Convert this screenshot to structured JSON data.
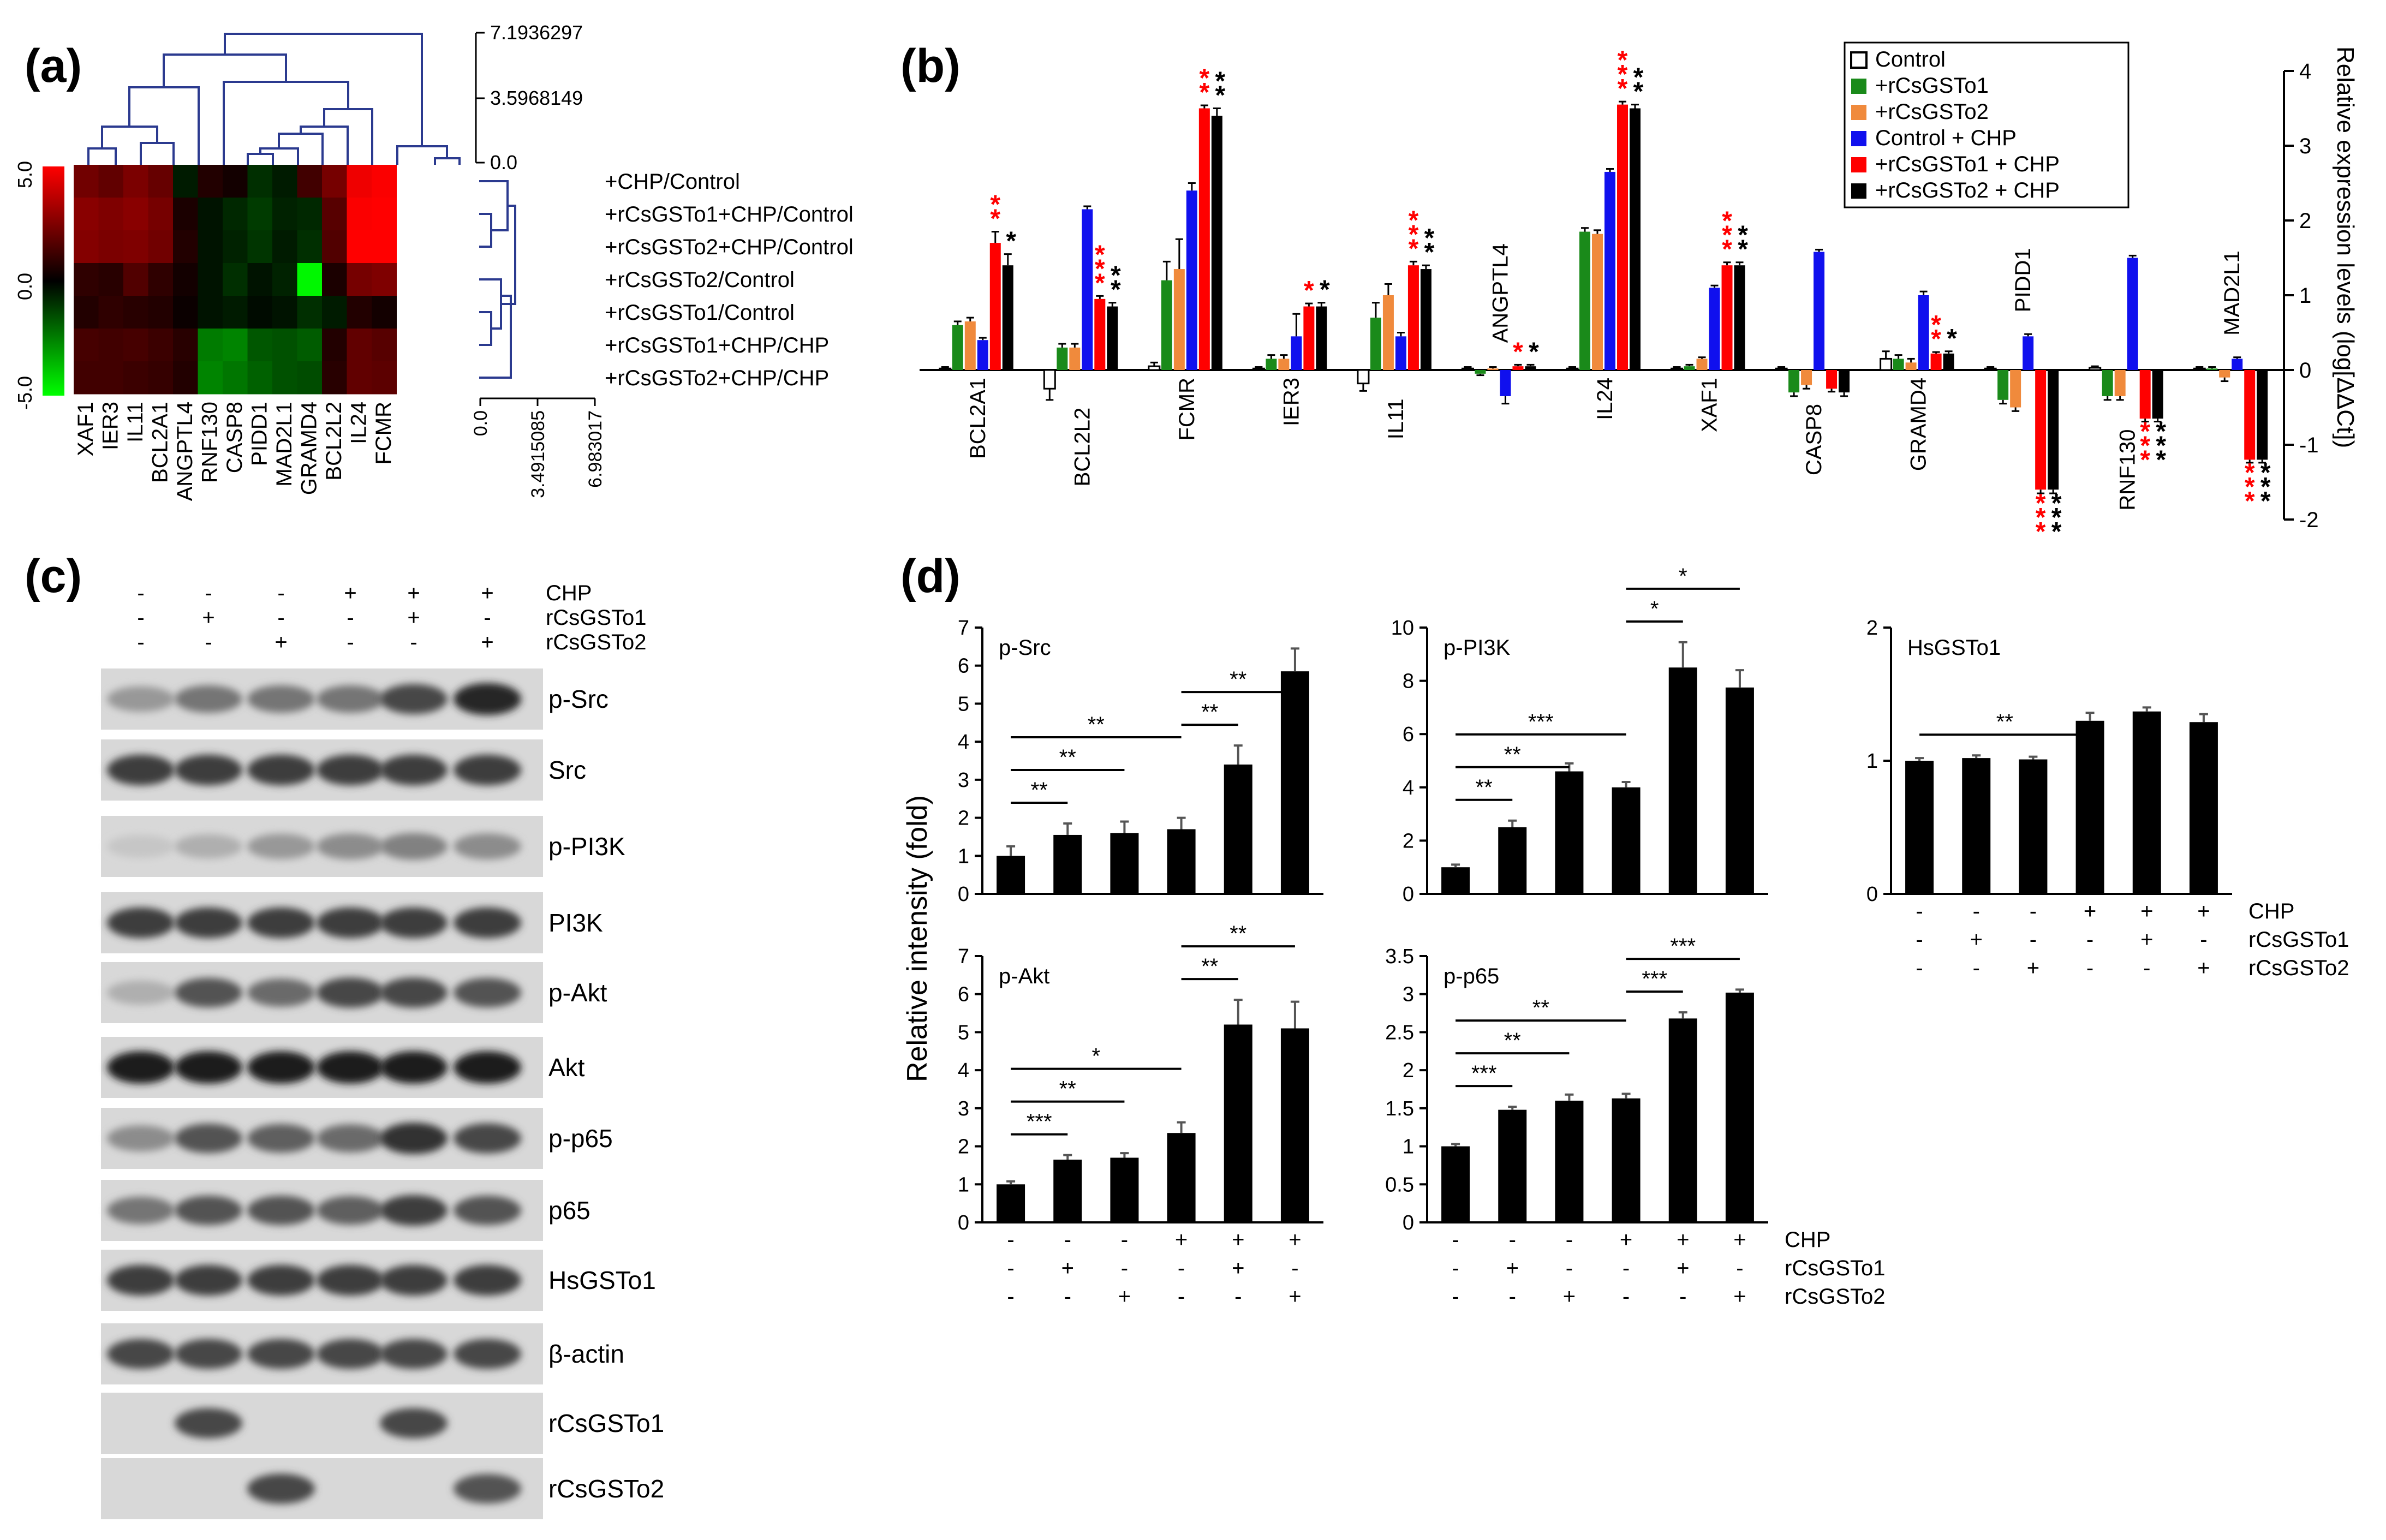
{
  "panel_labels": {
    "a": "(a)",
    "b": "(b)",
    "c": "(c)",
    "d": "(d)"
  },
  "heatmap": {
    "genes": [
      "XAF1",
      "IER3",
      "IL11",
      "BCL2A1",
      "ANGPTL4",
      "RNF130",
      "CASP8",
      "PIDD1",
      "MAD2L1",
      "GRAMD4",
      "BCL2L2",
      "IL24",
      "FCMR"
    ],
    "conditions": [
      "+CHP/Control",
      "+rCsGSTo1+CHP/Control",
      "+rCsGSTo2+CHP/Control",
      "+rCsGSTo2/Control",
      "+rCsGSTo1/Control",
      "+rCsGSTo1+CHP/CHP",
      "+rCsGSTo2+CHP/CHP"
    ],
    "values": [
      [
        1.8,
        1.5,
        2.0,
        1.6,
        -0.3,
        0.4,
        0.2,
        -0.6,
        -0.3,
        0.9,
        1.9,
        4.6,
        4.9
      ],
      [
        2.3,
        2.1,
        2.3,
        1.9,
        0.3,
        -0.2,
        -0.5,
        -0.8,
        -0.4,
        -0.5,
        1.3,
        4.9,
        5.0
      ],
      [
        2.2,
        2.0,
        2.1,
        1.8,
        0.4,
        -0.2,
        -0.4,
        -0.7,
        -0.3,
        -0.6,
        1.2,
        5.0,
        5.0
      ],
      [
        0.6,
        0.5,
        1.2,
        0.6,
        0.2,
        -0.2,
        -0.6,
        -0.2,
        -0.4,
        -4.8,
        0.3,
        1.9,
        2.1
      ],
      [
        0.4,
        0.6,
        0.5,
        0.4,
        0.1,
        -0.2,
        -0.3,
        -0.1,
        -0.2,
        -0.6,
        -0.3,
        0.4,
        0.2
      ],
      [
        1.0,
        0.9,
        1.0,
        0.8,
        0.5,
        -2.0,
        -2.2,
        -1.3,
        -1.2,
        -1.4,
        0.4,
        1.5,
        1.3
      ],
      [
        0.9,
        0.9,
        0.8,
        0.7,
        0.4,
        -2.2,
        -1.9,
        -1.5,
        -1.2,
        -1.1,
        0.5,
        1.5,
        1.4
      ]
    ],
    "color_scale_labels": [
      "5.0",
      "0.0",
      "-5.0"
    ],
    "top_tree_ticks": [
      "7.1936297",
      "3.5968149",
      "0.0"
    ],
    "side_tree_ticks": [
      "0.0",
      "3.4915085",
      "6.983017"
    ],
    "colors": {
      "high": "#ff0000",
      "mid": "#000000",
      "low": "#00ff00",
      "tree": "#2b3a8f"
    }
  },
  "chart_data": [
    {
      "type": "bar",
      "panel": "b",
      "title": "",
      "xlabel": "",
      "ylabel": "Relative expression levels (log[ΔΔCt])",
      "ylim": [
        -2,
        4
      ],
      "yticks": [
        "4",
        "3",
        "2",
        "1",
        "0",
        "-1",
        "-2"
      ],
      "categories": [
        "BCL2A1",
        "BCL2L2",
        "FCMR",
        "IER3",
        "IL11",
        "ANGPTL4",
        "IL24",
        "XAF1",
        "CASP8",
        "GRAMD4",
        "PIDD1",
        "RNF130",
        "MAD2L1"
      ],
      "series": [
        {
          "name": "Control",
          "color": "#ffffff",
          "values": [
            0.02,
            -0.25,
            0.05,
            0.02,
            -0.18,
            0.02,
            0.02,
            0.02,
            0.02,
            0.15,
            0.02,
            0.03,
            0.02
          ]
        },
        {
          "name": "+rCsGSTo1",
          "color": "#1a8a1a",
          "values": [
            0.6,
            0.3,
            1.2,
            0.15,
            0.7,
            -0.05,
            1.85,
            0.05,
            -0.3,
            0.15,
            -0.4,
            -0.35,
            0.02
          ]
        },
        {
          "name": "+rCsGSTo2",
          "color": "#f08a3c",
          "values": [
            0.65,
            0.3,
            1.35,
            0.15,
            1.0,
            0.02,
            1.82,
            0.15,
            -0.2,
            0.1,
            -0.5,
            -0.35,
            -0.1
          ]
        },
        {
          "name": "Control + CHP",
          "color": "#1010ee",
          "values": [
            0.4,
            2.15,
            2.4,
            0.45,
            0.45,
            -0.35,
            2.65,
            1.1,
            1.58,
            1.0,
            0.45,
            1.5,
            0.15
          ]
        },
        {
          "name": "+rCsGSTo1 + CHP",
          "color": "#ff0000",
          "values": [
            1.7,
            0.95,
            3.5,
            0.85,
            1.4,
            0.05,
            3.55,
            1.4,
            -0.25,
            0.22,
            -1.6,
            -0.65,
            -1.2
          ]
        },
        {
          "name": "+rCsGSTo2 + CHP",
          "color": "#000000",
          "values": [
            1.4,
            0.85,
            3.4,
            0.85,
            1.35,
            0.05,
            3.5,
            1.4,
            -0.3,
            0.22,
            -1.6,
            -0.65,
            -1.2
          ]
        }
      ],
      "errors": [
        [
          0.02,
          0.15,
          0.05,
          0.02,
          0.1,
          0.02,
          0.02,
          0.02,
          0.02,
          0.1,
          0.02,
          0.02,
          0.02
        ],
        [
          0.05,
          0.05,
          0.25,
          0.05,
          0.2,
          0.02,
          0.05,
          0.02,
          0.05,
          0.05,
          0.05,
          0.05,
          0.02
        ],
        [
          0.05,
          0.05,
          0.4,
          0.05,
          0.15,
          0.02,
          0.05,
          0.02,
          0.05,
          0.05,
          0.05,
          0.05,
          0.05
        ],
        [
          0.03,
          0.04,
          0.1,
          0.3,
          0.05,
          0.1,
          0.04,
          0.03,
          0.03,
          0.05,
          0.03,
          0.03,
          0.02
        ],
        [
          0.15,
          0.04,
          0.04,
          0.04,
          0.05,
          0.02,
          0.04,
          0.04,
          0.04,
          0.02,
          0.05,
          0.04,
          0.04
        ],
        [
          0.15,
          0.05,
          0.1,
          0.05,
          0.05,
          0.02,
          0.05,
          0.04,
          0.05,
          0.03,
          0.05,
          0.04,
          0.04
        ]
      ],
      "gene_label_positions": [
        "below",
        "below",
        "below",
        "below",
        "below",
        "above",
        "below",
        "below",
        "below",
        "below",
        "above",
        "below",
        "above"
      ],
      "significance_red": [
        "**",
        "***",
        "**",
        "*",
        "***",
        "*",
        "***",
        "***",
        "",
        "**",
        "***",
        "***",
        "***"
      ],
      "significance_black": [
        "*",
        "**",
        "**",
        "*",
        "**",
        "*",
        "**",
        "**",
        "",
        "*",
        "***",
        "***",
        "***"
      ]
    },
    {
      "type": "bar",
      "panel": "d",
      "title": "p-Src",
      "ylim": [
        0,
        7
      ],
      "yticks": [
        "0",
        "1",
        "2",
        "3",
        "4",
        "5",
        "6",
        "7"
      ],
      "values": [
        1.0,
        1.55,
        1.6,
        1.7,
        3.4,
        5.85
      ],
      "errors": [
        0.25,
        0.3,
        0.3,
        0.3,
        0.5,
        0.6
      ],
      "brackets": [
        {
          "from": 0,
          "to": 1,
          "label": "**"
        },
        {
          "from": 0,
          "to": 2,
          "label": "**"
        },
        {
          "from": 0,
          "to": 3,
          "label": "**"
        },
        {
          "from": 3,
          "to": 4,
          "label": "**"
        },
        {
          "from": 3,
          "to": 5,
          "label": "**"
        }
      ]
    },
    {
      "type": "bar",
      "panel": "d",
      "title": "p-PI3K",
      "ylim": [
        0,
        10
      ],
      "yticks": [
        "0",
        "2",
        "4",
        "6",
        "8",
        "10"
      ],
      "values": [
        1.0,
        2.5,
        4.6,
        4.0,
        8.5,
        7.75
      ],
      "errors": [
        0.1,
        0.25,
        0.3,
        0.2,
        0.95,
        0.65
      ],
      "brackets": [
        {
          "from": 0,
          "to": 1,
          "label": "**"
        },
        {
          "from": 0,
          "to": 2,
          "label": "**"
        },
        {
          "from": 0,
          "to": 3,
          "label": "***"
        },
        {
          "from": 3,
          "to": 4,
          "label": "*"
        },
        {
          "from": 3,
          "to": 5,
          "label": "*"
        }
      ]
    },
    {
      "type": "bar",
      "panel": "d",
      "title": "HsGSTo1",
      "ylim": [
        0,
        2
      ],
      "yticks": [
        "0",
        "1",
        "2"
      ],
      "values": [
        1.0,
        1.02,
        1.01,
        1.3,
        1.37,
        1.29
      ],
      "errors": [
        0.02,
        0.02,
        0.02,
        0.06,
        0.03,
        0.06
      ],
      "brackets": [
        {
          "from": 0,
          "to": 3,
          "label": "**"
        }
      ]
    },
    {
      "type": "bar",
      "panel": "d",
      "title": "p-Akt",
      "ylim": [
        0,
        7
      ],
      "yticks": [
        "0",
        "1",
        "2",
        "3",
        "4",
        "5",
        "6",
        "7"
      ],
      "values": [
        1.0,
        1.65,
        1.7,
        2.35,
        5.2,
        5.1
      ],
      "errors": [
        0.08,
        0.12,
        0.12,
        0.28,
        0.65,
        0.7
      ],
      "brackets": [
        {
          "from": 0,
          "to": 1,
          "label": "***"
        },
        {
          "from": 0,
          "to": 2,
          "label": "**"
        },
        {
          "from": 0,
          "to": 3,
          "label": "*"
        },
        {
          "from": 3,
          "to": 4,
          "label": "**"
        },
        {
          "from": 3,
          "to": 5,
          "label": "**"
        }
      ]
    },
    {
      "type": "bar",
      "panel": "d",
      "title": "p-p65",
      "ylim": [
        0,
        3.5
      ],
      "yticks": [
        "0",
        "0.5",
        "1",
        "1.5",
        "2",
        "2.5",
        "3",
        "3.5"
      ],
      "values": [
        1.0,
        1.48,
        1.6,
        1.63,
        2.68,
        3.02
      ],
      "errors": [
        0.03,
        0.04,
        0.08,
        0.06,
        0.08,
        0.04
      ],
      "brackets": [
        {
          "from": 0,
          "to": 1,
          "label": "***"
        },
        {
          "from": 0,
          "to": 2,
          "label": "**"
        },
        {
          "from": 0,
          "to": 3,
          "label": "**"
        },
        {
          "from": 3,
          "to": 4,
          "label": "***"
        },
        {
          "from": 3,
          "to": 5,
          "label": "***"
        }
      ]
    }
  ],
  "panel_d": {
    "ylabel": "Relative intensity (fold)",
    "treatments": [
      "CHP",
      "rCsGSTo1",
      "rCsGSTo2"
    ],
    "signs": [
      [
        "-",
        "-",
        "-",
        "+",
        "+",
        "+"
      ],
      [
        "-",
        "+",
        "-",
        "-",
        "+",
        "-"
      ],
      [
        "-",
        "-",
        "+",
        "-",
        "-",
        "+"
      ]
    ]
  },
  "panel_c": {
    "treatments": [
      "CHP",
      "rCsGSTo1",
      "rCsGSTo2"
    ],
    "signs": [
      [
        "-",
        "-",
        "-",
        "+",
        "+",
        "+"
      ],
      [
        "-",
        "+",
        "-",
        "-",
        "+",
        "-"
      ],
      [
        "-",
        "-",
        "+",
        "-",
        "-",
        "+"
      ]
    ],
    "blots": [
      {
        "label": "p-Src",
        "intensity": [
          0.45,
          0.6,
          0.6,
          0.6,
          0.8,
          0.95
        ]
      },
      {
        "label": "Src",
        "intensity": [
          0.85,
          0.85,
          0.85,
          0.85,
          0.85,
          0.85
        ]
      },
      {
        "label": "p-PI3K",
        "intensity": [
          0.25,
          0.35,
          0.45,
          0.5,
          0.55,
          0.5
        ]
      },
      {
        "label": "PI3K",
        "intensity": [
          0.85,
          0.85,
          0.85,
          0.85,
          0.85,
          0.85
        ]
      },
      {
        "label": "p-Akt",
        "intensity": [
          0.35,
          0.75,
          0.65,
          0.8,
          0.8,
          0.75
        ]
      },
      {
        "label": "Akt",
        "intensity": [
          0.98,
          0.98,
          0.98,
          0.98,
          0.98,
          0.98
        ]
      },
      {
        "label": "p-p65",
        "intensity": [
          0.5,
          0.75,
          0.7,
          0.65,
          0.9,
          0.8
        ]
      },
      {
        "label": "p65",
        "intensity": [
          0.6,
          0.75,
          0.75,
          0.7,
          0.85,
          0.75
        ]
      },
      {
        "label": "HsGSTo1",
        "intensity": [
          0.85,
          0.85,
          0.85,
          0.85,
          0.85,
          0.85
        ]
      },
      {
        "label": "β-actin",
        "intensity": [
          0.8,
          0.8,
          0.8,
          0.8,
          0.8,
          0.8
        ]
      },
      {
        "label": "rCsGSTo1",
        "intensity": [
          0.0,
          0.8,
          0.0,
          0.0,
          0.8,
          0.0
        ]
      },
      {
        "label": "rCsGSTo2",
        "intensity": [
          0.0,
          0.0,
          0.8,
          0.0,
          0.0,
          0.75
        ]
      }
    ]
  }
}
